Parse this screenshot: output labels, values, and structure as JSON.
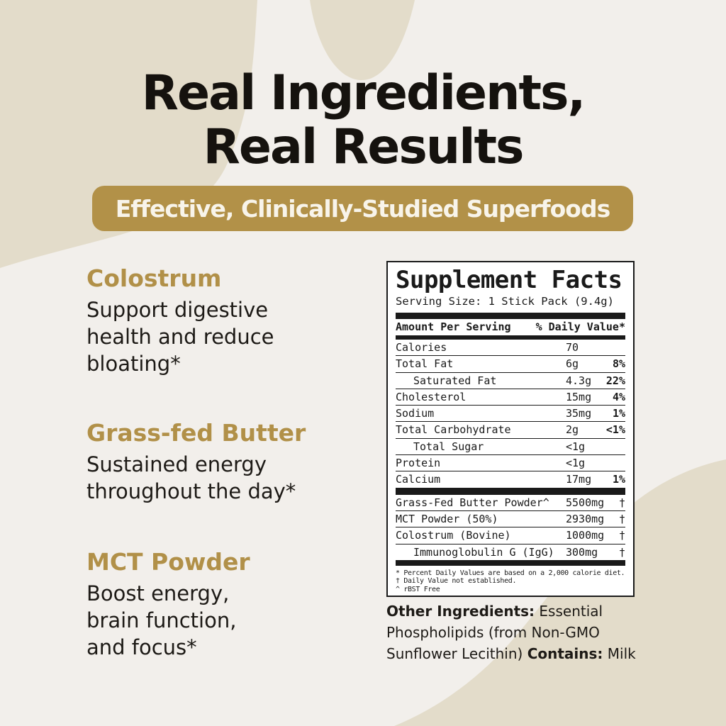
{
  "page": {
    "title_line1": "Real Ingredients,",
    "title_line2": "Real Results",
    "banner": "Effective, Clinically-Studied Superfoods"
  },
  "colors": {
    "background_cream": "#F2EFEB",
    "blob_beige": "#E3DCCA",
    "gold_accent": "#B29148",
    "text_black": "#1D1A16",
    "panel_background": "#FFFFFF",
    "panel_border": "#1A1A1A"
  },
  "ingredients": [
    {
      "name": "Colostrum",
      "lines": [
        "Support digestive",
        "health and reduce",
        "bloating*"
      ]
    },
    {
      "name": "Grass-fed Butter",
      "lines": [
        "Sustained energy",
        "throughout the day*"
      ]
    },
    {
      "name": "MCT Powder",
      "lines": [
        "Boost energy,",
        "brain function,",
        "and focus*"
      ]
    }
  ],
  "supplement_facts": {
    "title": "Supplement Facts",
    "serving_size": "Serving Size: 1 Stick Pack (9.4g)",
    "header": {
      "left": "Amount Per Serving",
      "right": "% Daily Value*"
    },
    "nutrients": [
      {
        "name": "Calories",
        "amount": "70",
        "dv": "",
        "indent": false
      },
      {
        "name": "Total Fat",
        "amount": "6g",
        "dv": "8%",
        "indent": false
      },
      {
        "name": "Saturated Fat",
        "amount": "4.3g",
        "dv": "22%",
        "indent": true
      },
      {
        "name": "Cholesterol",
        "amount": "15mg",
        "dv": "4%",
        "indent": false
      },
      {
        "name": "Sodium",
        "amount": "35mg",
        "dv": "1%",
        "indent": false
      },
      {
        "name": "Total Carbohydrate",
        "amount": "2g",
        "dv": "<1%",
        "indent": false
      },
      {
        "name": "Total Sugar",
        "amount": "<1g",
        "dv": "",
        "indent": true
      },
      {
        "name": "Protein",
        "amount": "<1g",
        "dv": "",
        "indent": false
      },
      {
        "name": "Calcium",
        "amount": "17mg",
        "dv": "1%",
        "indent": false
      }
    ],
    "actives": [
      {
        "name": "Grass-Fed Butter Powder^",
        "amount": "5500mg",
        "dv": "†",
        "indent": false
      },
      {
        "name": "MCT Powder (50%)",
        "amount": "2930mg",
        "dv": "†",
        "indent": false
      },
      {
        "name": "Colostrum (Bovine)",
        "amount": "1000mg",
        "dv": "†",
        "indent": false
      },
      {
        "name": "Immunoglobulin G (IgG)",
        "amount": "300mg",
        "dv": "†",
        "indent": true
      }
    ],
    "footnotes": [
      "* Percent Daily Values are based on a 2,000 calorie diet.",
      "† Daily Value not established.",
      "^ rBST Free"
    ]
  },
  "other_ingredients": {
    "bold1": "Other Ingredients:",
    "rest1": " Essential",
    "line2": "Phospholipids (from Non-GMO",
    "rest3a": "Sunflower Lecithin) ",
    "bold3": "Contains:",
    "rest3b": " Milk"
  }
}
